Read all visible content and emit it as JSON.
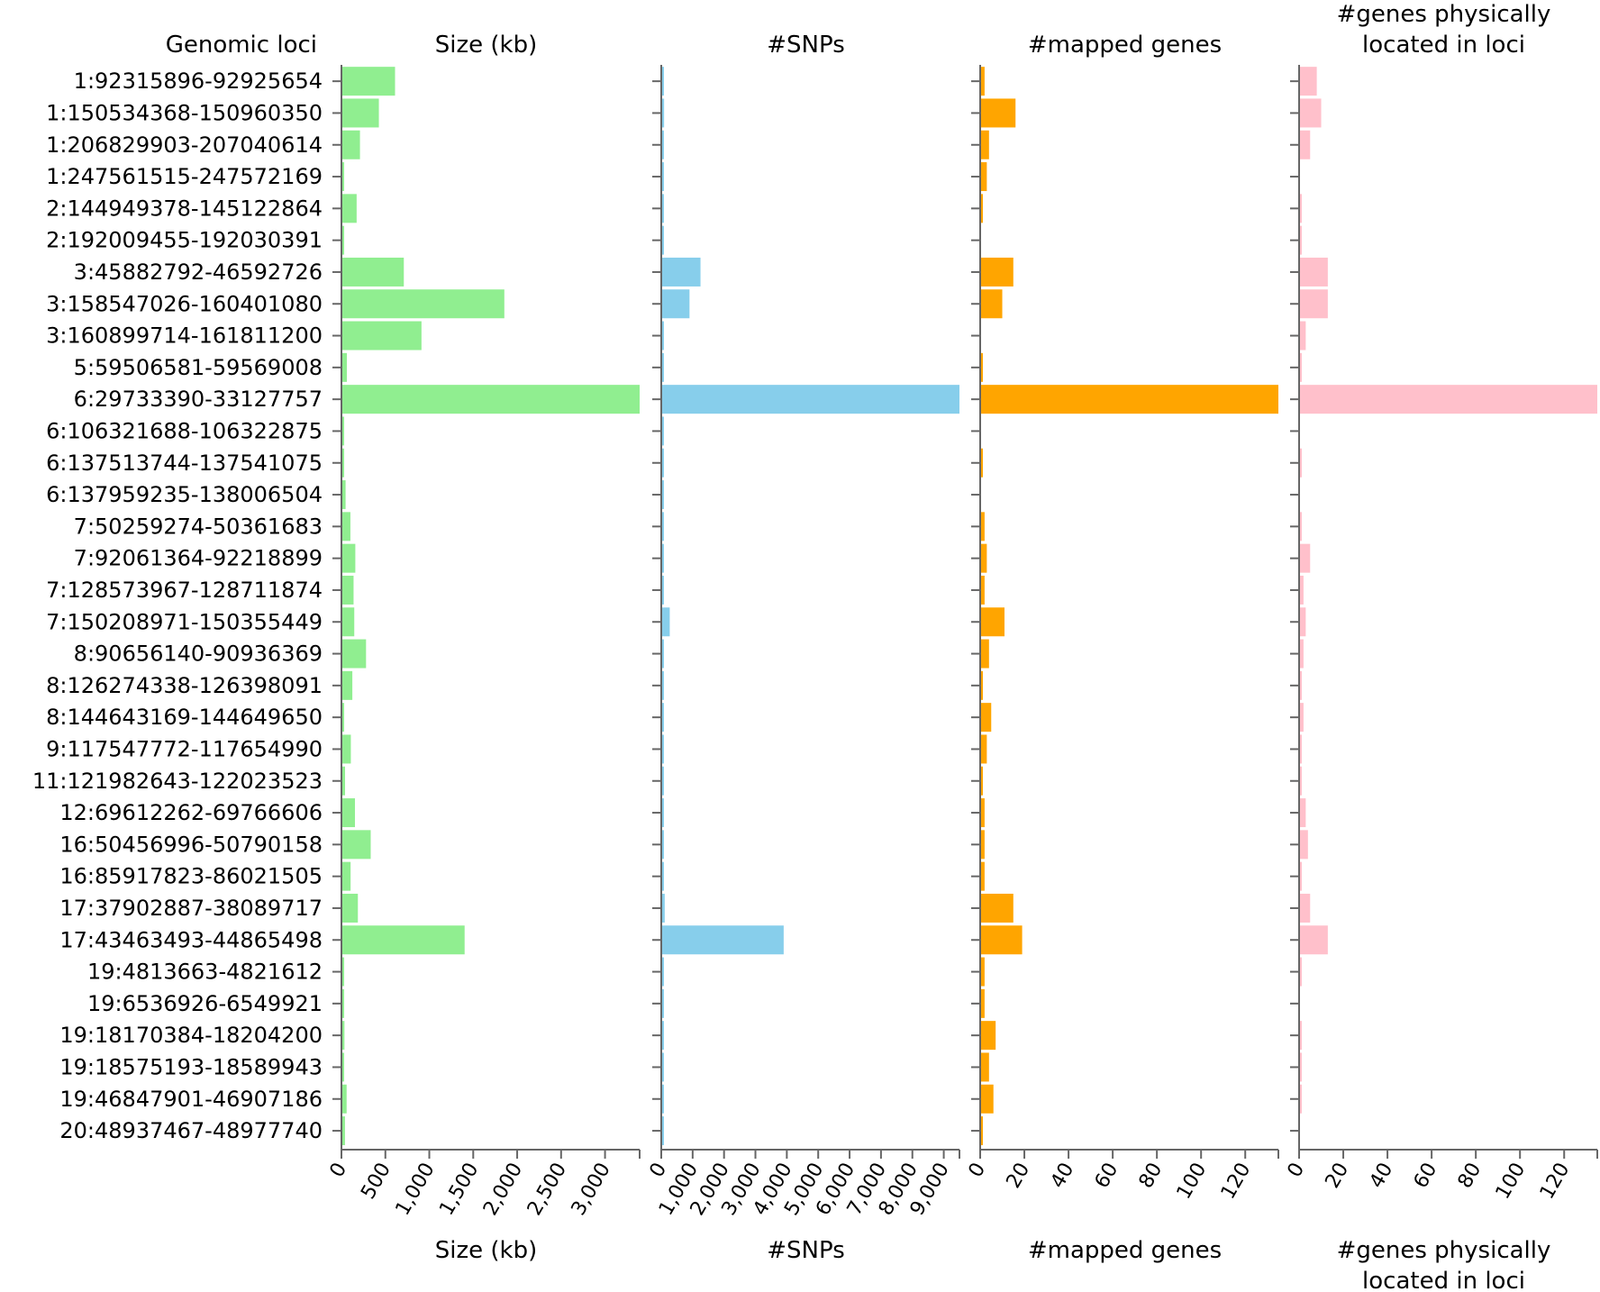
{
  "chart_data": {
    "type": "bar",
    "orientation": "horizontal",
    "categories_title": "Genomic loci",
    "categories": [
      "1:92315896-92925654",
      "1:150534368-150960350",
      "1:206829903-207040614",
      "1:247561515-247572169",
      "2:144949378-145122864",
      "2:192009455-192030391",
      "3:45882792-46592726",
      "3:158547026-160401080",
      "3:160899714-161811200",
      "5:59506581-59569008",
      "6:29733390-33127757",
      "6:106321688-106322875",
      "6:137513744-137541075",
      "6:137959235-138006504",
      "7:50259274-50361683",
      "7:92061364-92218899",
      "7:128573967-128711874",
      "7:150208971-150355449",
      "8:90656140-90936369",
      "8:126274338-126398091",
      "8:144643169-144649650",
      "9:117547772-117654990",
      "11:121982643-122023523",
      "12:69612262-69766606",
      "16:50456996-50790158",
      "16:85917823-86021505",
      "17:37902887-38089717",
      "17:43463493-44865498",
      "19:4813663-4821612",
      "19:6536926-6549921",
      "19:18170384-18204200",
      "19:18575193-18589943",
      "19:46847901-46907186",
      "20:48937467-48977740"
    ],
    "series": [
      {
        "name": "Size (kb)",
        "color": "#90ee90",
        "xlim": [
          0,
          3394
        ],
        "ticks": [
          "0",
          "500",
          "1,000",
          "1,500",
          "2,000",
          "2,500",
          "3,000"
        ],
        "tick_values": [
          0,
          500,
          1000,
          1500,
          2000,
          2500,
          3000
        ],
        "values": [
          610,
          426,
          211,
          11,
          173,
          21,
          710,
          1854,
          911,
          62,
          3394,
          1,
          27,
          47,
          102,
          158,
          138,
          146,
          280,
          124,
          6,
          107,
          41,
          154,
          333,
          104,
          187,
          1402,
          8,
          13,
          34,
          15,
          59,
          40
        ]
      },
      {
        "name": "#SNPs",
        "color": "#87ceeb",
        "xlim": [
          0,
          9500
        ],
        "ticks": [
          "0",
          "1,000",
          "2,000",
          "3,000",
          "4,000",
          "5,000",
          "6,000",
          "7,000",
          "8,000",
          "9,000"
        ],
        "tick_values": [
          0,
          1000,
          2000,
          3000,
          4000,
          5000,
          6000,
          7000,
          8000,
          9000
        ],
        "values": [
          20,
          90,
          80,
          5,
          40,
          5,
          1250,
          900,
          10,
          10,
          9500,
          1,
          5,
          10,
          40,
          20,
          20,
          270,
          80,
          60,
          5,
          10,
          10,
          20,
          20,
          40,
          110,
          3900,
          5,
          5,
          30,
          5,
          10,
          10
        ]
      },
      {
        "name": "#mapped genes",
        "color": "#ffa500",
        "xlim": [
          0,
          135
        ],
        "ticks": [
          "0",
          "20",
          "40",
          "60",
          "80",
          "100",
          "120"
        ],
        "tick_values": [
          0,
          20,
          40,
          60,
          80,
          100,
          120
        ],
        "values": [
          2,
          16,
          4,
          3,
          1,
          0,
          15,
          10,
          0,
          1,
          135,
          0,
          1,
          0,
          2,
          3,
          2,
          11,
          4,
          1,
          5,
          3,
          1,
          2,
          2,
          2,
          15,
          19,
          2,
          2,
          7,
          4,
          6,
          1
        ]
      },
      {
        "name": "#genes physically located in loci",
        "color": "#ffc0cb",
        "xlim": [
          0,
          135
        ],
        "ticks": [
          "0",
          "20",
          "40",
          "60",
          "80",
          "100",
          "120"
        ],
        "tick_values": [
          0,
          20,
          40,
          60,
          80,
          100,
          120
        ],
        "values": [
          8,
          10,
          5,
          0,
          1,
          1,
          13,
          13,
          3,
          1,
          135,
          0,
          1,
          0,
          1,
          5,
          2,
          3,
          2,
          1,
          2,
          1,
          1,
          3,
          4,
          1,
          5,
          13,
          1,
          0,
          1,
          1,
          1,
          0
        ]
      }
    ],
    "panel_titles": [
      [
        "Size (kb)"
      ],
      [
        "#SNPs"
      ],
      [
        "#mapped genes"
      ],
      [
        "#genes physically",
        "located in loci"
      ]
    ],
    "grid": false,
    "legend": "none"
  }
}
